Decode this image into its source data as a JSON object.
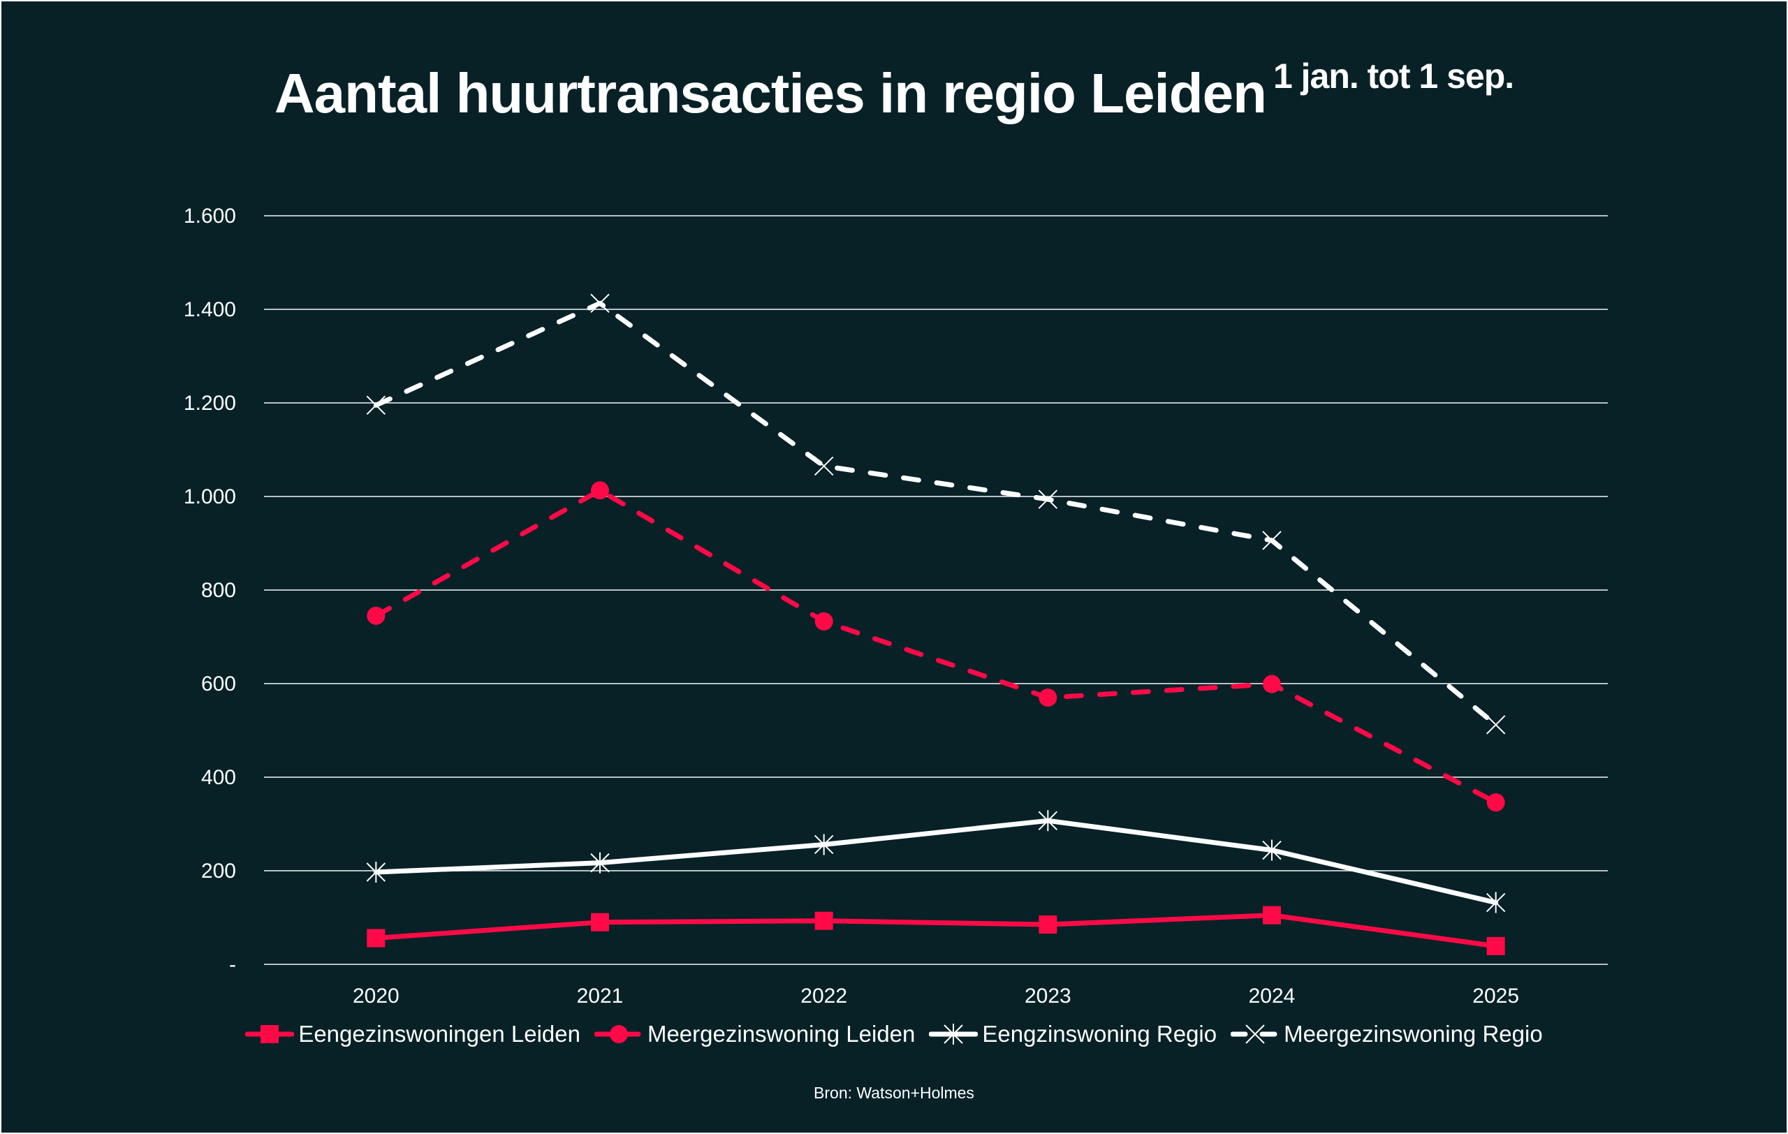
{
  "chart_data": {
    "type": "line",
    "title": "Aantal huurtransacties in regio Leiden",
    "subtitle": "1 jan. tot 1 sep.",
    "categories": [
      "2020",
      "2021",
      "2022",
      "2023",
      "2024",
      "2025"
    ],
    "ylim": [
      0,
      1600
    ],
    "yticks": [
      0,
      200,
      400,
      600,
      800,
      1000,
      1200,
      1400,
      1600
    ],
    "ytick_labels": [
      "-",
      "200",
      "400",
      "600",
      "800",
      "1.000",
      "1.200",
      "1.400",
      "1.600"
    ],
    "grid": true,
    "legend_position": "bottom",
    "series": [
      {
        "name": "Eengezinswoningen Leiden",
        "values": [
          56,
          90,
          93,
          85,
          105,
          39
        ],
        "color": "#ff0a47",
        "dash": false,
        "marker": "square"
      },
      {
        "name": "Meergezinswoning Leiden",
        "values": [
          745,
          1013,
          733,
          570,
          599,
          346
        ],
        "color": "#ff0a47",
        "dash": true,
        "marker": "circle"
      },
      {
        "name": "Eengzinswoning Regio",
        "values": [
          197,
          217,
          256,
          307,
          244,
          132
        ],
        "color": "#ffffff",
        "dash": false,
        "marker": "asterisk"
      },
      {
        "name": "Meergezinswoning Regio",
        "values": [
          1195,
          1413,
          1065,
          994,
          906,
          512
        ],
        "color": "#ffffff",
        "dash": true,
        "marker": "x"
      }
    ],
    "source": "Bron: Watson+Holmes"
  },
  "colors": {
    "background": "#072127",
    "accent": "#ff0a47",
    "grid": "#b8c2c4"
  }
}
